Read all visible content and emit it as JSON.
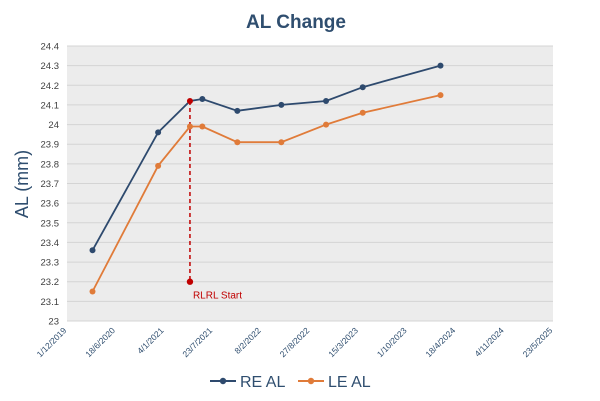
{
  "chart_data": {
    "type": "line",
    "title": "AL Change",
    "xlabel": "",
    "ylabel": "AL (mm)",
    "ylim": [
      23,
      24.4
    ],
    "yticks": [
      "23",
      "23.1",
      "23.2",
      "23.3",
      "23.4",
      "23.5",
      "23.6",
      "23.7",
      "23.8",
      "23.9",
      "24",
      "24.1",
      "24.2",
      "24.3",
      "24.4"
    ],
    "xlim": [
      "2019-12-01",
      "2025-05-23"
    ],
    "xticks": [
      {
        "date": "2019-12-01",
        "label": "1/12/2019"
      },
      {
        "date": "2020-06-18",
        "label": "18/6/2020"
      },
      {
        "date": "2021-01-04",
        "label": "4/1/2021"
      },
      {
        "date": "2021-07-23",
        "label": "23/7/2021"
      },
      {
        "date": "2022-02-08",
        "label": "8/2/2022"
      },
      {
        "date": "2022-08-27",
        "label": "27/8/2022"
      },
      {
        "date": "2023-03-15",
        "label": "15/3/2023"
      },
      {
        "date": "2023-10-01",
        "label": "1/10/2023"
      },
      {
        "date": "2024-04-18",
        "label": "18/4/2024"
      },
      {
        "date": "2024-11-04",
        "label": "4/11/2024"
      },
      {
        "date": "2025-05-23",
        "label": "23/5/2025"
      }
    ],
    "grid": "horizontal",
    "legend_position": "bottom",
    "series": [
      {
        "name": "RE AL",
        "color": "#2e4a6e",
        "x": [
          "2020-03-15",
          "2020-12-10",
          "2021-04-20",
          "2021-06-10",
          "2021-11-01",
          "2022-05-01",
          "2022-11-01",
          "2023-04-01",
          "2024-02-15"
        ],
        "values": [
          23.36,
          23.96,
          24.12,
          24.13,
          24.07,
          24.1,
          24.12,
          24.19,
          24.3
        ]
      },
      {
        "name": "LE AL",
        "color": "#e07b39",
        "x": [
          "2020-03-15",
          "2020-12-10",
          "2021-04-20",
          "2021-06-10",
          "2021-11-01",
          "2022-05-01",
          "2022-11-01",
          "2023-04-01",
          "2024-02-15"
        ],
        "values": [
          23.15,
          23.79,
          23.99,
          23.99,
          23.91,
          23.91,
          24.0,
          24.06,
          24.15
        ]
      }
    ],
    "annotations": [
      {
        "text": "RLRL Start",
        "date": "2021-04-20",
        "from": 24.12,
        "to": 23.2,
        "color": "#c00000"
      }
    ]
  }
}
